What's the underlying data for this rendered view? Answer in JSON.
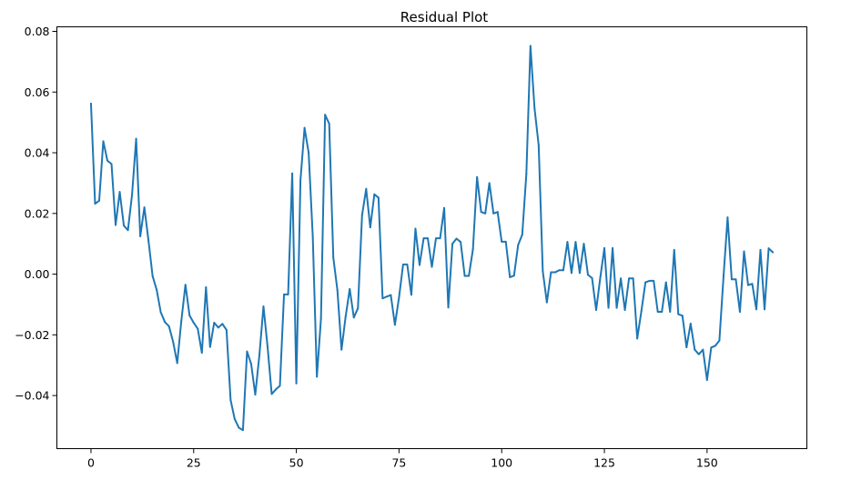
{
  "chart_data": {
    "type": "line",
    "title": "Residual Plot",
    "xlabel": "",
    "ylabel": "",
    "xlim": [
      -8.3,
      174.3
    ],
    "ylim": [
      -0.0575,
      0.0815
    ],
    "x_ticks": [
      0,
      25,
      50,
      75,
      100,
      125,
      150
    ],
    "y_ticks": [
      -0.04,
      -0.02,
      0.0,
      0.02,
      0.04,
      0.06,
      0.08
    ],
    "y_tick_labels": [
      "−0.04",
      "−0.02",
      "0.00",
      "0.02",
      "0.04",
      "0.06",
      "0.08"
    ],
    "grid": false,
    "legend": "none",
    "series": [
      {
        "color": "#1f77b4",
        "values": [
          0.0562,
          0.0232,
          0.0242,
          0.0438,
          0.0374,
          0.0363,
          0.0162,
          0.0271,
          0.016,
          0.0145,
          0.0262,
          0.0446,
          0.0125,
          0.022,
          0.0111,
          -0.0006,
          -0.0052,
          -0.0126,
          -0.0158,
          -0.0172,
          -0.0223,
          -0.0293,
          -0.0154,
          -0.0035,
          -0.0136,
          -0.016,
          -0.018,
          -0.0259,
          -0.0043,
          -0.024,
          -0.016,
          -0.0176,
          -0.0164,
          -0.0184,
          -0.0415,
          -0.0478,
          -0.0506,
          -0.0514,
          -0.0255,
          -0.0296,
          -0.0397,
          -0.0268,
          -0.0106,
          -0.024,
          -0.0395,
          -0.038,
          -0.0368,
          -0.0067,
          -0.0067,
          0.0332,
          -0.036,
          0.0309,
          0.0482,
          0.04,
          0.0125,
          -0.0338,
          -0.0147,
          0.0525,
          0.0496,
          0.0055,
          -0.0053,
          -0.0249,
          -0.014,
          -0.0049,
          -0.0143,
          -0.0112,
          0.0194,
          0.0281,
          0.0154,
          0.0263,
          0.0252,
          -0.008,
          -0.0074,
          -0.0069,
          -0.0167,
          -0.0077,
          0.0032,
          0.0032,
          -0.0068,
          0.015,
          0.003,
          0.0118,
          0.0118,
          0.0024,
          0.0118,
          0.0118,
          0.0218,
          -0.011,
          0.01,
          0.0117,
          0.0106,
          -0.0006,
          -0.0006,
          0.0082,
          0.032,
          0.0205,
          0.02,
          0.03,
          0.02,
          0.0205,
          0.0107,
          0.0107,
          -0.001,
          -0.0005,
          0.0096,
          0.013,
          0.0329,
          0.0752,
          0.0546,
          0.0425,
          0.001,
          -0.0093,
          0.0006,
          0.0006,
          0.0013,
          0.0013,
          0.0106,
          0.0004,
          0.0106,
          0.0004,
          0.01,
          -0.0002,
          -0.0013,
          -0.0118,
          -0.0012,
          0.0086,
          -0.0111,
          0.0086,
          -0.0111,
          -0.0014,
          -0.0118,
          -0.0014,
          -0.0014,
          -0.0212,
          -0.0123,
          -0.0027,
          -0.0022,
          -0.0022,
          -0.0124,
          -0.0124,
          -0.0027,
          -0.0124,
          0.008,
          -0.0132,
          -0.0137,
          -0.0241,
          -0.0163,
          -0.0249,
          -0.0264,
          -0.0249,
          -0.0349,
          -0.0242,
          -0.0236,
          -0.0219,
          -0.001,
          0.0187,
          -0.0017,
          -0.0017,
          -0.0124,
          0.0075,
          -0.0036,
          -0.0032,
          -0.0116,
          0.008,
          -0.0116,
          0.0085,
          0.0072
        ]
      }
    ]
  }
}
